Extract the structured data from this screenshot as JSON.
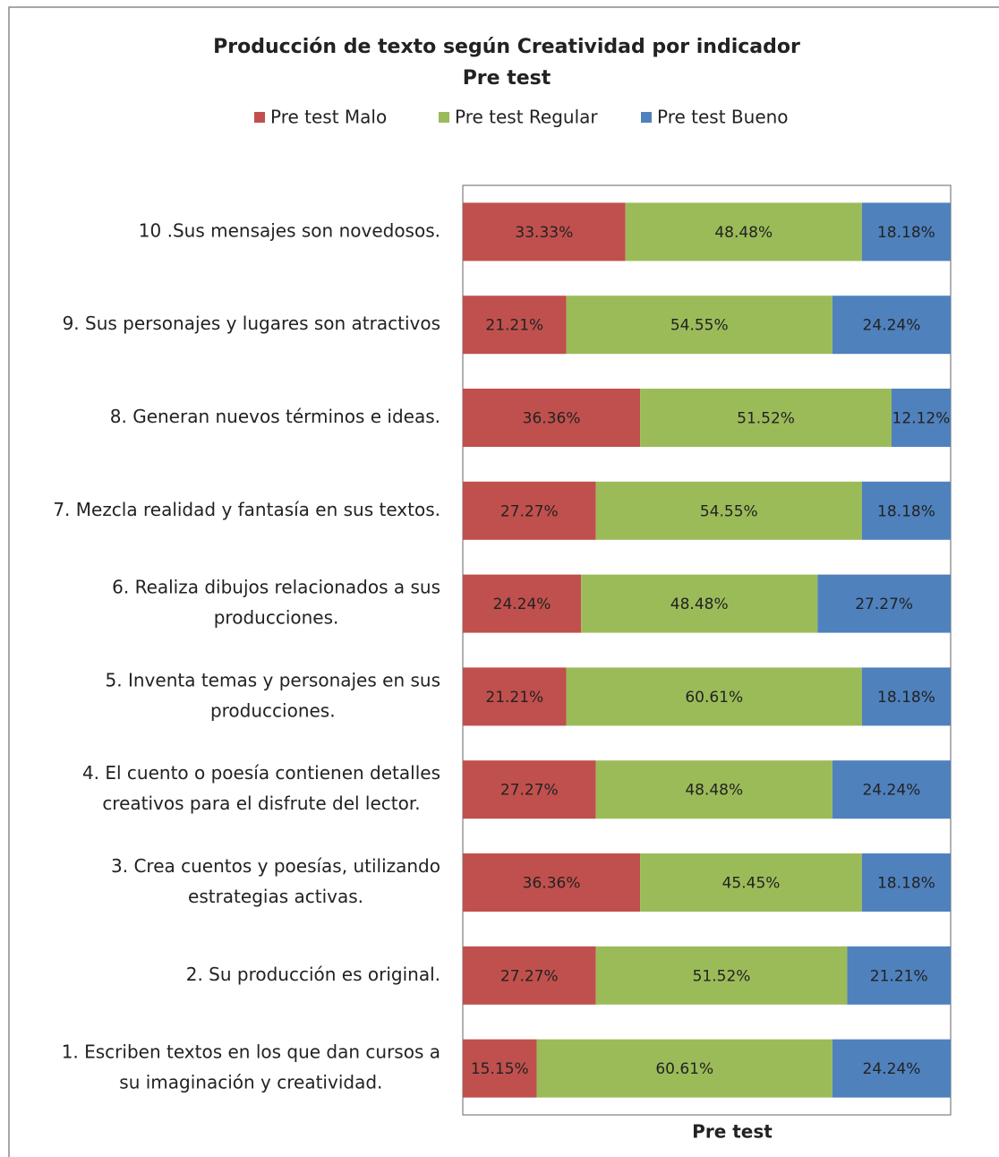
{
  "chart_data": {
    "type": "stacked_bar_horizontal_percent",
    "title": "Producción de texto según Creatividad por indicador",
    "subtitle": "Pre test",
    "x_label": "Pre test",
    "xlim": [
      0,
      100
    ],
    "legend": "top",
    "categories": [
      [
        "10 .Sus mensajes son novedosos."
      ],
      [
        "9. Sus personajes y lugares son atractivos"
      ],
      [
        "8. Generan nuevos términos e ideas."
      ],
      [
        "7. Mezcla realidad y fantasía en sus textos."
      ],
      [
        "6. Realiza dibujos relacionados a sus",
        "producciones."
      ],
      [
        "5. Inventa temas y personajes en sus",
        "producciones."
      ],
      [
        "4. El cuento o poesía contienen detalles",
        "creativos para el disfrute del lector."
      ],
      [
        "3. Crea cuentos y poesías, utilizando",
        "estrategias activas."
      ],
      [
        "2. Su producción es original."
      ],
      [
        "1. Escriben textos en los que dan cursos a",
        "su imaginación y creatividad."
      ]
    ],
    "series": [
      {
        "name": "Pre test Malo",
        "color": "#c0504d",
        "values": [
          33.33,
          21.21,
          36.36,
          27.27,
          24.24,
          21.21,
          27.27,
          36.36,
          27.27,
          15.15
        ],
        "value_labels": [
          "33.33%",
          "21.21%",
          "36.36%",
          "27.27%",
          "24.24%",
          "21.21%",
          "27.27%",
          "36.36%",
          "27.27%",
          "15.15%"
        ]
      },
      {
        "name": "Pre test Regular",
        "color": "#9bbb59",
        "values": [
          48.48,
          54.55,
          51.52,
          54.55,
          48.48,
          60.61,
          48.48,
          45.45,
          51.52,
          60.61
        ],
        "value_labels": [
          "48.48%",
          "54.55%",
          "51.52%",
          "54.55%",
          "48.48%",
          "60.61%",
          "48.48%",
          "45.45%",
          "51.52%",
          "60.61%"
        ]
      },
      {
        "name": "Pre test Bueno",
        "color": "#4f81bd",
        "values": [
          18.18,
          24.24,
          12.12,
          18.18,
          27.27,
          18.18,
          24.24,
          18.18,
          21.21,
          24.24
        ],
        "value_labels": [
          "18.18%",
          "24.24%",
          "12.12%",
          "18.18%",
          "27.27%",
          "18.18%",
          "24.24%",
          "18.18%",
          "21.21%",
          "24.24%"
        ]
      }
    ]
  }
}
